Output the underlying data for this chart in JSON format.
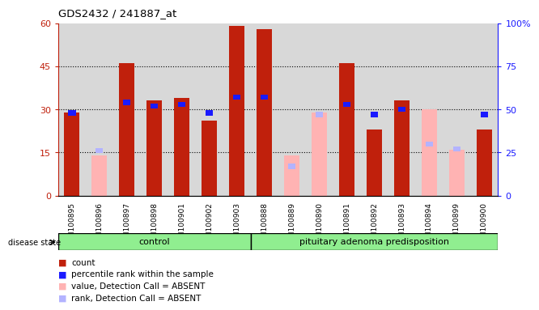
{
  "title": "GDS2432 / 241887_at",
  "samples": [
    "GSM100895",
    "GSM100896",
    "GSM100897",
    "GSM100898",
    "GSM100901",
    "GSM100902",
    "GSM100903",
    "GSM100888",
    "GSM100889",
    "GSM100890",
    "GSM100891",
    "GSM100892",
    "GSM100893",
    "GSM100894",
    "GSM100899",
    "GSM100900"
  ],
  "n_control": 7,
  "n_pituitary": 9,
  "count": [
    29,
    null,
    46,
    33,
    34,
    26,
    59,
    58,
    null,
    null,
    46,
    23,
    33,
    null,
    null,
    23
  ],
  "percentile_rank": [
    48,
    null,
    54,
    52,
    53,
    48,
    57,
    57,
    null,
    null,
    53,
    47,
    50,
    null,
    null,
    47
  ],
  "absent_value": [
    null,
    14,
    null,
    null,
    null,
    null,
    null,
    null,
    14,
    29,
    null,
    null,
    null,
    30,
    16,
    null
  ],
  "absent_rank": [
    null,
    26,
    null,
    null,
    null,
    null,
    null,
    null,
    17,
    47,
    null,
    null,
    null,
    30,
    27,
    null
  ],
  "bar_width": 0.55,
  "ylim_left": [
    0,
    60
  ],
  "ylim_right": [
    0,
    100
  ],
  "yticks_left": [
    0,
    15,
    30,
    45,
    60
  ],
  "ytick_labels_left": [
    "0",
    "15",
    "30",
    "45",
    "60"
  ],
  "yticks_right": [
    0,
    25,
    50,
    75,
    100
  ],
  "ytick_labels_right": [
    "0",
    "25",
    "50",
    "75",
    "100%"
  ],
  "color_count": "#c0200c",
  "color_rank": "#1a1aff",
  "color_absent_value": "#ffb3b3",
  "color_absent_rank": "#b3b3ff",
  "group_color": "#90ee90",
  "disease_state_label": "disease state",
  "group_label_control": "control",
  "group_label_pituitary": "pituitary adenoma predisposition",
  "legend_items": [
    "count",
    "percentile rank within the sample",
    "value, Detection Call = ABSENT",
    "rank, Detection Call = ABSENT"
  ]
}
